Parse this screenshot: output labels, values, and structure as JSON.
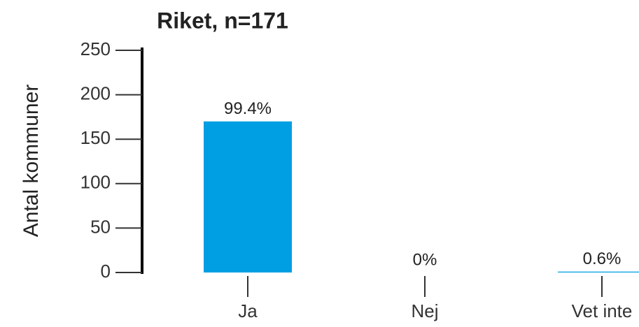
{
  "chart_data": {
    "type": "bar",
    "title": "Riket, n=171",
    "y_label": "Antal kommuner",
    "categories": [
      "Ja",
      "Nej",
      "Vet inte"
    ],
    "values": [
      170,
      0,
      1
    ],
    "value_labels": [
      "99.4%",
      "0%",
      "0.6%"
    ],
    "color": "#009fe3",
    "ylim": [
      0,
      250
    ],
    "yticks": [
      0,
      50,
      100,
      150,
      200,
      250
    ]
  }
}
